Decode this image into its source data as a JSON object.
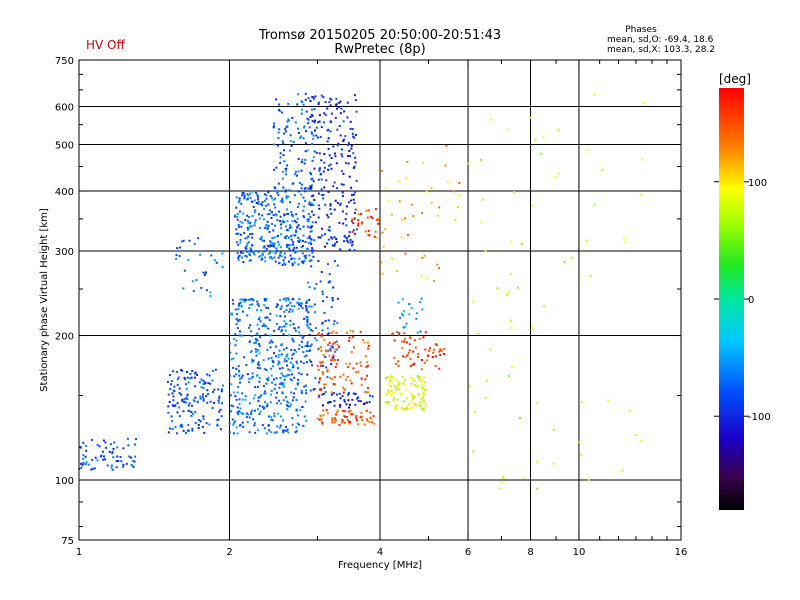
{
  "header": {
    "title_line1": "Tromsø 20150205 20:50:00-20:51:43",
    "title_line2": "RwPretec (8p)",
    "status": "HV Off",
    "stats_title": "Phases",
    "stats_line1": "mean, sd,O: -69.4, 18.6",
    "stats_line2": "mean, sd,X: 103.3, 28.2"
  },
  "colorbar": {
    "unit_label": "[deg]",
    "range": [
      -180,
      180
    ],
    "ticks": [
      {
        "value": 100,
        "label": "100"
      },
      {
        "value": 0,
        "label": "0"
      },
      {
        "value": -100,
        "label": "-100"
      }
    ]
  },
  "chart_data": {
    "type": "scatter",
    "title": "Tromsø 20150205 20:50:00-20:51:43",
    "subtitle": "RwPretec (8p)",
    "xlabel": "Frequency [MHz]",
    "ylabel": "Stationary phase Virtual Height [km]",
    "x_scale": "log",
    "y_scale": "log",
    "xlim": [
      1,
      16
    ],
    "ylim": [
      75,
      750
    ],
    "x_ticks": [
      {
        "value": 1,
        "label": "1"
      },
      {
        "value": 2,
        "label": "2"
      },
      {
        "value": 4,
        "label": "4"
      },
      {
        "value": 6,
        "label": "6"
      },
      {
        "value": 8,
        "label": "8"
      },
      {
        "value": 10,
        "label": "10"
      },
      {
        "value": 16,
        "label": "16"
      }
    ],
    "y_ticks": [
      {
        "value": 75,
        "label": "75"
      },
      {
        "value": 100,
        "label": "100"
      },
      {
        "value": 200,
        "label": "200"
      },
      {
        "value": 300,
        "label": "300"
      },
      {
        "value": 400,
        "label": "400"
      },
      {
        "value": 500,
        "label": "500"
      },
      {
        "value": 600,
        "label": "600"
      },
      {
        "value": 750,
        "label": "750"
      }
    ],
    "x_gridlines": [
      2,
      4,
      6,
      8,
      10
    ],
    "y_gridlines": [
      100,
      200,
      300,
      400,
      500,
      600
    ],
    "grid": true,
    "color_variable": "phase [deg]",
    "clusters": [
      {
        "x_range": [
          1.0,
          1.3
        ],
        "y_range": [
          105,
          122
        ],
        "phase": -80,
        "count": 70
      },
      {
        "x_range": [
          1.5,
          1.95
        ],
        "y_range": [
          125,
          170
        ],
        "phase": -85,
        "count": 150
      },
      {
        "x_range": [
          1.55,
          1.95
        ],
        "y_range": [
          240,
          320
        ],
        "phase": -75,
        "count": 30
      },
      {
        "x_range": [
          2.0,
          2.85
        ],
        "y_range": [
          125,
          180
        ],
        "phase": -70,
        "count": 260
      },
      {
        "x_range": [
          2.0,
          2.9
        ],
        "y_range": [
          180,
          240
        ],
        "phase": -72,
        "count": 220
      },
      {
        "x_range": [
          2.05,
          2.95
        ],
        "y_range": [
          280,
          400
        ],
        "phase": -75,
        "count": 360
      },
      {
        "x_range": [
          2.45,
          2.95
        ],
        "y_range": [
          400,
          640
        ],
        "phase": -80,
        "count": 110
      },
      {
        "x_range": [
          2.9,
          3.6
        ],
        "y_range": [
          300,
          640
        ],
        "phase": -100,
        "count": 230
      },
      {
        "x_range": [
          2.85,
          3.3
        ],
        "y_range": [
          150,
          300
        ],
        "phase": -85,
        "count": 90
      },
      {
        "x_range": [
          3.5,
          4.0
        ],
        "y_range": [
          320,
          370
        ],
        "phase": 160,
        "count": 30
      },
      {
        "x_range": [
          3.0,
          3.8
        ],
        "y_range": [
          150,
          205
        ],
        "phase": 150,
        "count": 100
      },
      {
        "x_range": [
          3.0,
          3.9
        ],
        "y_range": [
          130,
          140
        ],
        "phase": 150,
        "count": 60
      },
      {
        "x_range": [
          3.0,
          3.9
        ],
        "y_range": [
          141,
          152
        ],
        "phase": -110,
        "count": 40
      },
      {
        "x_range": [
          4.1,
          4.95
        ],
        "y_range": [
          140,
          165
        ],
        "phase": 85,
        "count": 110
      },
      {
        "x_range": [
          4.2,
          5.4
        ],
        "y_range": [
          170,
          205
        ],
        "phase": 160,
        "count": 60
      },
      {
        "x_range": [
          4.3,
          4.9
        ],
        "y_range": [
          200,
          240
        ],
        "phase": -60,
        "count": 20
      },
      {
        "x_range": [
          3.9,
          5.8
        ],
        "y_range": [
          260,
          500
        ],
        "phase": 120,
        "count": 45
      },
      {
        "x_range": [
          6.0,
          14.0
        ],
        "y_range": [
          90,
          650
        ],
        "phase": 80,
        "count": 70
      }
    ]
  }
}
